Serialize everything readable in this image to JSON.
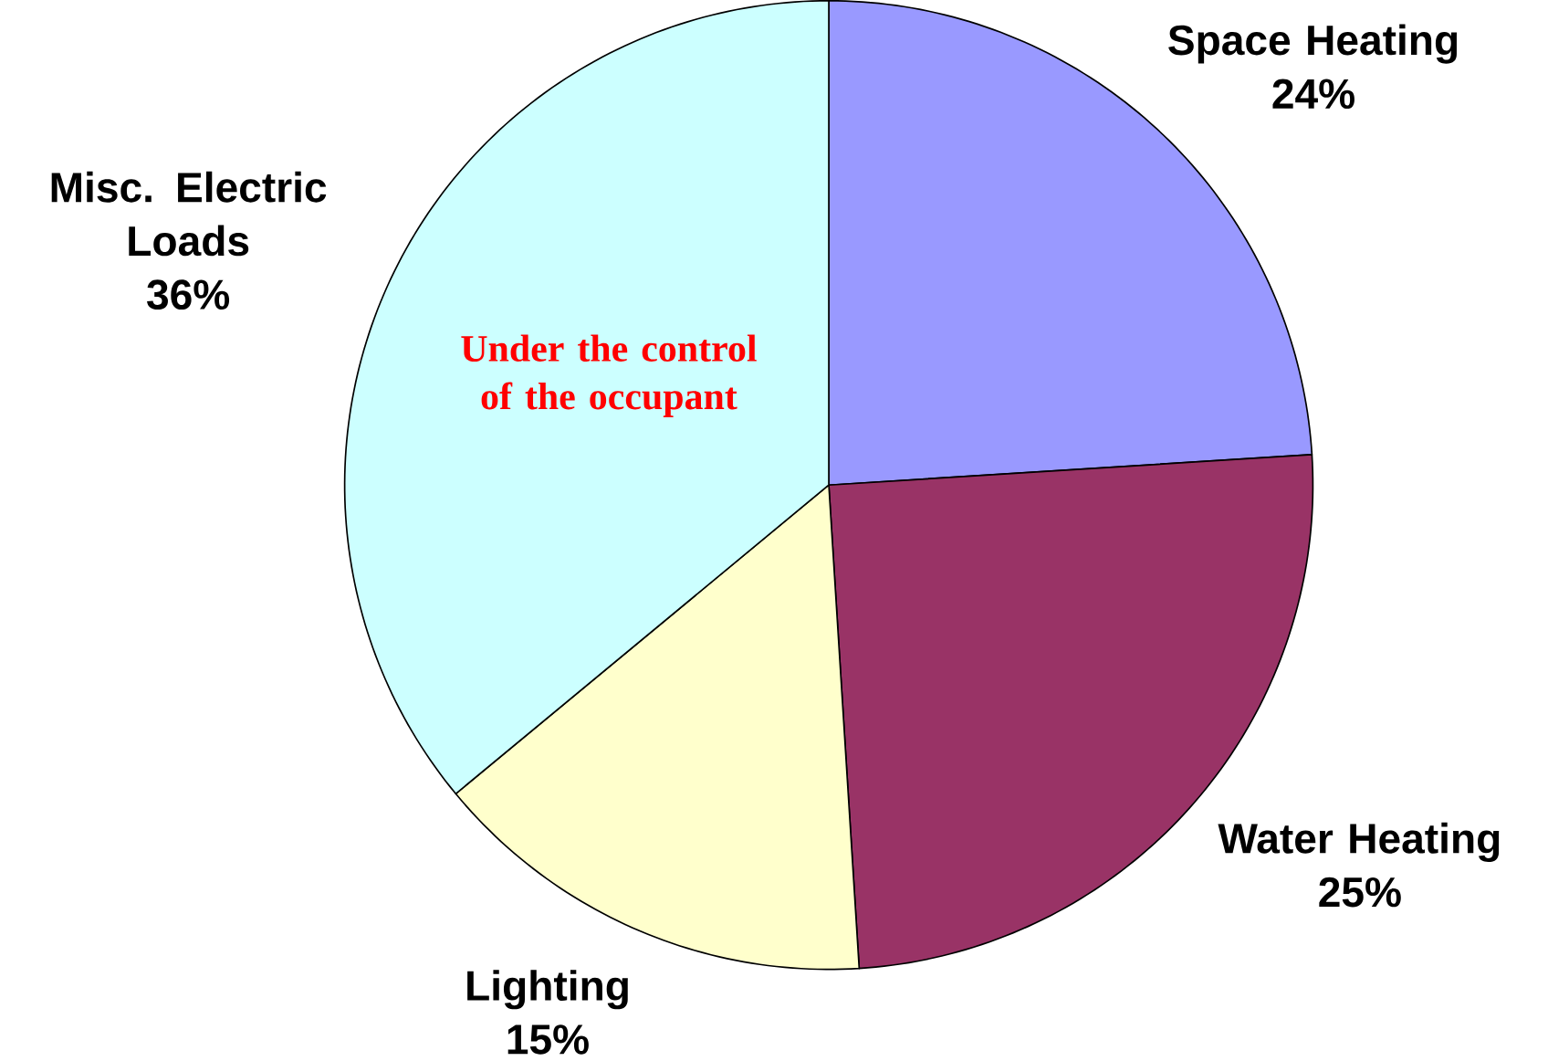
{
  "chart_data": {
    "type": "pie",
    "categories": [
      "Space Heating",
      "Water Heating",
      "Lighting",
      "Misc. Electric Loads"
    ],
    "values": [
      24,
      25,
      15,
      36
    ],
    "colors": [
      "#9999ff",
      "#993366",
      "#ffffcc",
      "#ccffff"
    ],
    "value_labels": [
      "24%",
      "25%",
      "15%",
      "36%"
    ],
    "annotations": [
      "Under the control of the occupant"
    ]
  }
}
